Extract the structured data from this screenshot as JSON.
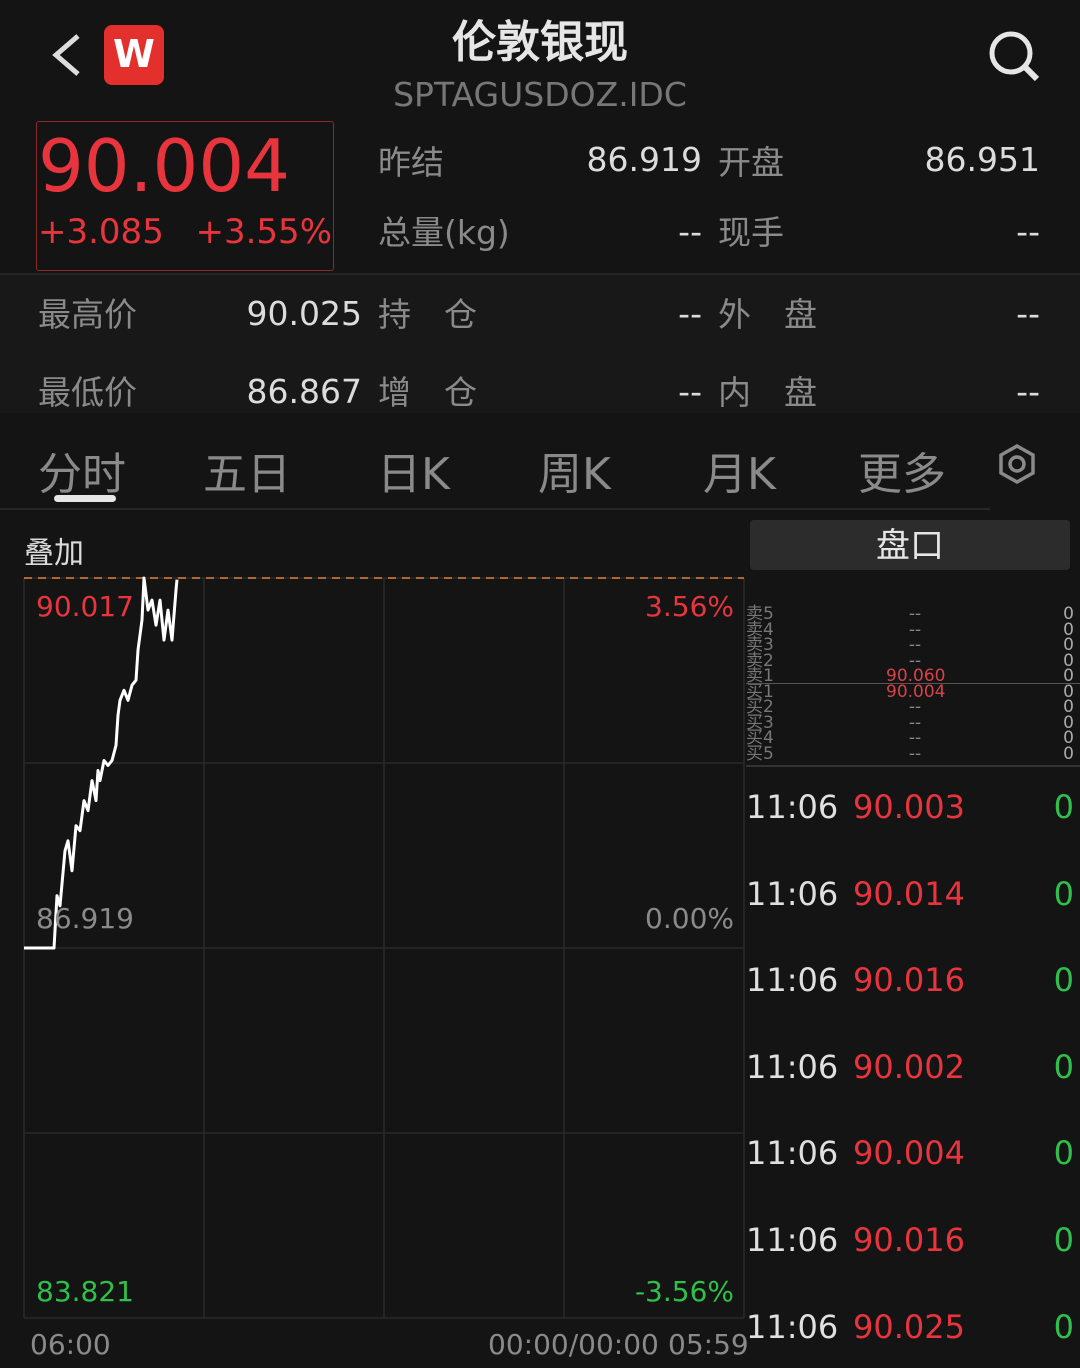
{
  "header": {
    "title": "伦敦银现",
    "code": "SPTAGUSDOZ.IDC",
    "logo_text": "W",
    "back_icon": "chevron-left-icon",
    "search_icon": "search-icon"
  },
  "quote": {
    "price": "90.004",
    "change": "+3.085",
    "change_pct": "+3.55%"
  },
  "stats": [
    {
      "label": "昨结",
      "value": "86.919"
    },
    {
      "label": "开盘",
      "value": "86.951"
    },
    {
      "label": "总量(kg)",
      "value": "--"
    },
    {
      "label": "现手",
      "value": "--"
    },
    {
      "label": "最高价",
      "value": "90.025"
    },
    {
      "label": "持　仓",
      "value": "--"
    },
    {
      "label": "外　盘",
      "value": "--"
    },
    {
      "label": "最低价",
      "value": "86.867"
    },
    {
      "label": "增　仓",
      "value": "--"
    },
    {
      "label": "内　盘",
      "value": "--"
    }
  ],
  "tabs": [
    {
      "label": "分时",
      "active": true
    },
    {
      "label": "五日"
    },
    {
      "label": "日K"
    },
    {
      "label": "周K"
    },
    {
      "label": "月K"
    },
    {
      "label": "更多"
    }
  ],
  "settings_icon": "settings-icon",
  "chart": {
    "overlay_label": "叠加",
    "y_top": "90.017",
    "y_mid": "86.919",
    "y_bottom": "83.821",
    "pct_top": "3.56%",
    "pct_mid": "0.00%",
    "pct_bottom": "-3.56%",
    "x_start": "06:00",
    "x_mid": "00:00/00:00",
    "x_end": "05:59",
    "ylim": [
      83.821,
      90.017
    ],
    "prev_settle": 86.919,
    "colors": {
      "line": "#ffffff",
      "high_line": "#e0813a",
      "up": "#e8353d",
      "down": "#2fbf4a"
    },
    "points": [
      [
        "06:00",
        86.919
      ],
      [
        "07:00",
        86.919
      ],
      [
        "07:06",
        87.356
      ],
      [
        "07:12",
        87.272
      ],
      [
        "07:22",
        87.733
      ],
      [
        "07:28",
        87.817
      ],
      [
        "07:36",
        87.565
      ],
      [
        "07:44",
        87.943
      ],
      [
        "07:52",
        87.901
      ],
      [
        "08:00",
        88.153
      ],
      [
        "08:08",
        88.069
      ],
      [
        "08:16",
        88.321
      ],
      [
        "08:24",
        88.153
      ],
      [
        "08:28",
        88.405
      ],
      [
        "08:32",
        88.321
      ],
      [
        "08:40",
        88.489
      ],
      [
        "08:48",
        88.447
      ],
      [
        "08:56",
        88.489
      ],
      [
        "09:04",
        88.615
      ],
      [
        "09:08",
        88.867
      ],
      [
        "09:12",
        88.993
      ],
      [
        "09:20",
        89.077
      ],
      [
        "09:28",
        88.993
      ],
      [
        "09:36",
        89.119
      ],
      [
        "09:44",
        89.161
      ],
      [
        "09:48",
        89.413
      ],
      [
        "09:56",
        89.665
      ],
      [
        "10:00",
        90.017
      ],
      [
        "10:08",
        89.748
      ],
      [
        "10:16",
        89.832
      ],
      [
        "10:24",
        89.622
      ],
      [
        "10:32",
        89.832
      ],
      [
        "10:40",
        89.497
      ],
      [
        "10:48",
        89.748
      ],
      [
        "10:56",
        89.497
      ],
      [
        "11:04",
        89.916
      ],
      [
        "11:06",
        90.004
      ]
    ]
  },
  "orderbook": {
    "title": "盘口",
    "levels": [
      {
        "label": "卖5",
        "price": "--",
        "vol": "0"
      },
      {
        "label": "卖4",
        "price": "--",
        "vol": "0"
      },
      {
        "label": "卖3",
        "price": "--",
        "vol": "0"
      },
      {
        "label": "卖2",
        "price": "--",
        "vol": "0"
      },
      {
        "label": "卖1",
        "price": "90.060",
        "vol": "0"
      },
      {
        "label": "买1",
        "price": "90.004",
        "vol": "0"
      },
      {
        "label": "买2",
        "price": "--",
        "vol": "0"
      },
      {
        "label": "买3",
        "price": "--",
        "vol": "0"
      },
      {
        "label": "买4",
        "price": "--",
        "vol": "0"
      },
      {
        "label": "买5",
        "price": "--",
        "vol": "0"
      }
    ]
  },
  "trades": [
    {
      "time": "11:06",
      "price": "90.003",
      "vol": "0"
    },
    {
      "time": "11:06",
      "price": "90.014",
      "vol": "0"
    },
    {
      "time": "11:06",
      "price": "90.016",
      "vol": "0"
    },
    {
      "time": "11:06",
      "price": "90.002",
      "vol": "0"
    },
    {
      "time": "11:06",
      "price": "90.004",
      "vol": "0"
    },
    {
      "time": "11:06",
      "price": "90.016",
      "vol": "0"
    },
    {
      "time": "11:06",
      "price": "90.025",
      "vol": "0"
    }
  ]
}
